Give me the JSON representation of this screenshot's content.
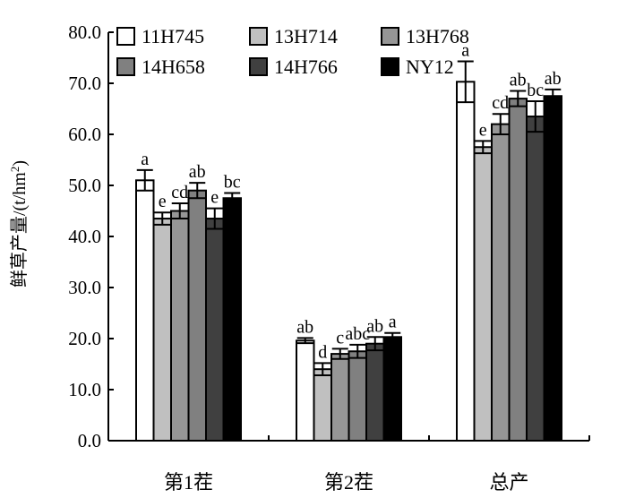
{
  "chart_data": {
    "type": "bar",
    "ylabel": "鲜草产量/(t/hm²)",
    "ylabel_main": "鲜草产量/(t/hm",
    "ylabel_sup": "2",
    "ylabel_close": ")",
    "ylim": [
      0,
      80
    ],
    "ytick_labels": [
      "0.0",
      "10.0",
      "20.0",
      "30.0",
      "40.0",
      "50.0",
      "60.0",
      "70.0",
      "80.0"
    ],
    "yticks": [
      0,
      10,
      20,
      30,
      40,
      50,
      60,
      70,
      80
    ],
    "categories": [
      "第1茬",
      "第2茬",
      "总产"
    ],
    "legend_position": "top",
    "grid": false,
    "series": [
      {
        "name": "11H745",
        "color": "#ffffff",
        "values": [
          51.0,
          19.6,
          70.3
        ],
        "errors": [
          2.0,
          0.5,
          4.0
        ],
        "sig": [
          "a",
          "ab",
          "a"
        ]
      },
      {
        "name": "13H714",
        "color": "#c0c0c0",
        "values": [
          43.5,
          14.0,
          57.5
        ],
        "errors": [
          1.2,
          1.2,
          1.2
        ],
        "sig": [
          "e",
          "d",
          "e"
        ]
      },
      {
        "name": "13H768",
        "color": "#969696",
        "values": [
          45.0,
          17.0,
          62.0
        ],
        "errors": [
          1.5,
          1.0,
          2.0
        ],
        "sig": [
          "cd",
          "c",
          "cd"
        ]
      },
      {
        "name": "14H658",
        "color": "#808080",
        "values": [
          49.0,
          17.5,
          67.0
        ],
        "errors": [
          1.5,
          1.3,
          1.5
        ],
        "sig": [
          "ab",
          "abc",
          "ab"
        ]
      },
      {
        "name": "14H766",
        "color": "#404040",
        "values": [
          43.5,
          19.0,
          63.5
        ],
        "errors": [
          2.0,
          1.3,
          3.0
        ],
        "sig": [
          "e",
          "ab",
          "bc"
        ]
      },
      {
        "name": "NY12",
        "color": "#000000",
        "values": [
          47.5,
          20.3,
          67.5
        ],
        "errors": [
          1.0,
          0.8,
          1.3
        ],
        "sig": [
          "bc",
          "a",
          "ab"
        ]
      }
    ]
  }
}
